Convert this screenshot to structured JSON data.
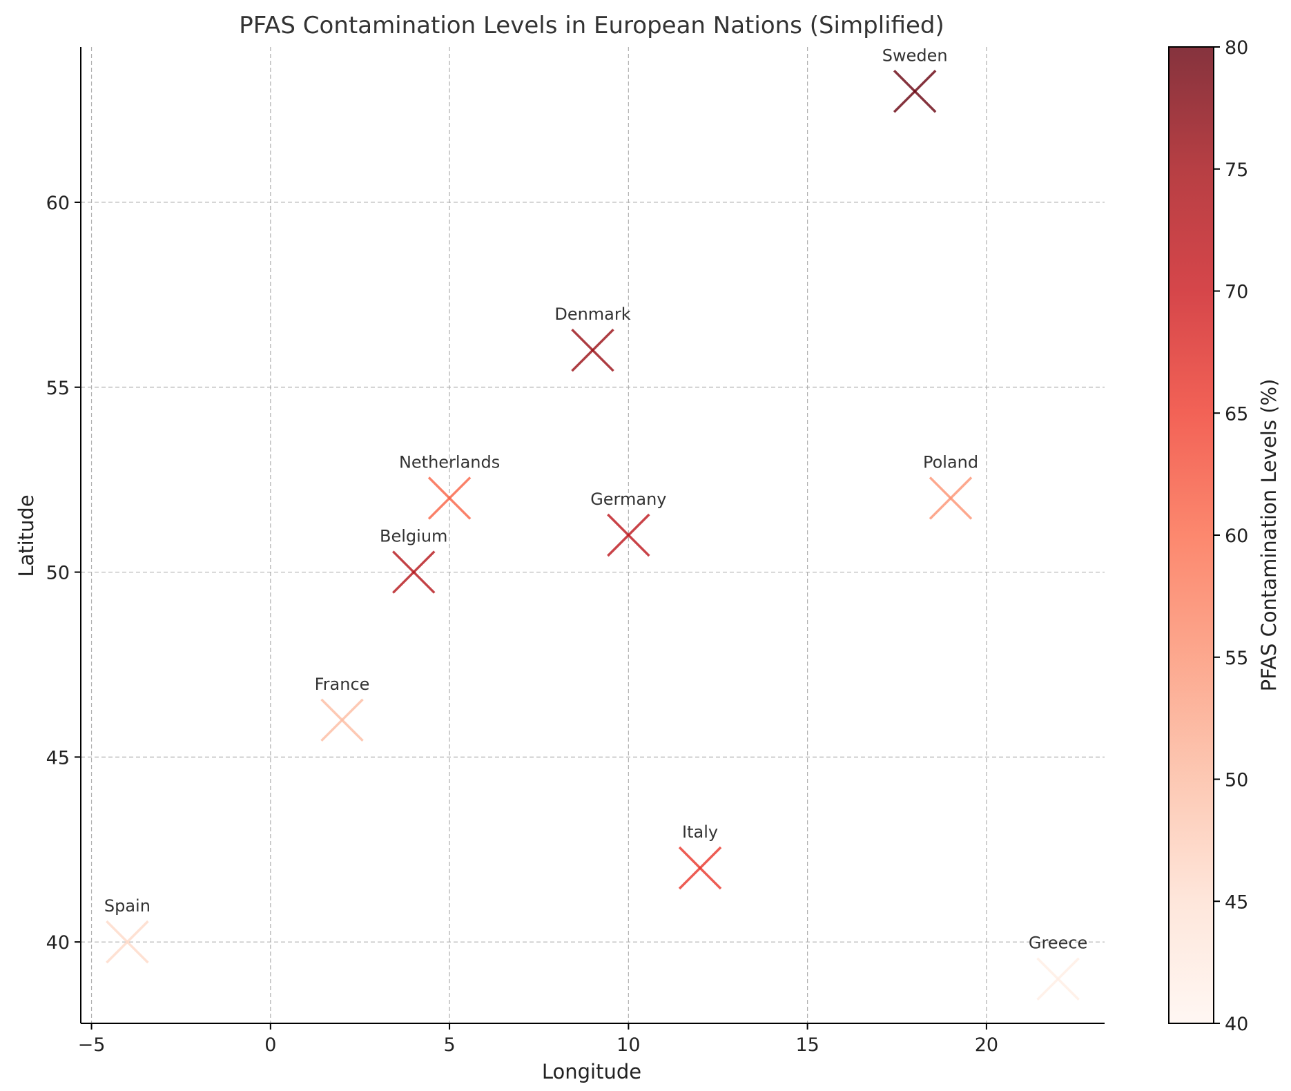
{
  "chart_data": {
    "type": "scatter",
    "title": "PFAS Contamination Levels in European Nations (Simplified)",
    "xlabel": "Longitude",
    "ylabel": "Latitude",
    "xlim": [
      -5.3,
      23.3
    ],
    "ylim": [
      37.8,
      64.2
    ],
    "xticks": [
      -5,
      0,
      5,
      10,
      15,
      20
    ],
    "yticks": [
      40,
      45,
      50,
      55,
      60
    ],
    "xtick_labels": [
      "−5",
      "0",
      "5",
      "10",
      "15",
      "20"
    ],
    "ytick_labels": [
      "40",
      "45",
      "50",
      "55",
      "60"
    ],
    "grid": true,
    "marker": "x",
    "colormap": "Reds",
    "color_range": [
      40,
      80
    ],
    "colorbar_label": "PFAS Contamination Levels (%)",
    "colorbar_ticks": [
      40,
      45,
      50,
      55,
      60,
      65,
      70,
      75,
      80
    ],
    "colorbar_tick_labels": [
      "40",
      "45",
      "50",
      "55",
      "60",
      "65",
      "70",
      "75",
      "80"
    ],
    "points": [
      {
        "label": "Germany",
        "x": 10,
        "y": 51,
        "value": 72
      },
      {
        "label": "France",
        "x": 2,
        "y": 46,
        "value": 50
      },
      {
        "label": "Italy",
        "x": 12,
        "y": 42,
        "value": 66
      },
      {
        "label": "Spain",
        "x": -4,
        "y": 40,
        "value": 46
      },
      {
        "label": "Netherlands",
        "x": 5,
        "y": 52,
        "value": 61
      },
      {
        "label": "Belgium",
        "x": 4,
        "y": 50,
        "value": 73
      },
      {
        "label": "Sweden",
        "x": 18,
        "y": 63,
        "value": 80
      },
      {
        "label": "Denmark",
        "x": 9,
        "y": 56,
        "value": 76
      },
      {
        "label": "Poland",
        "x": 19,
        "y": 52,
        "value": 55
      },
      {
        "label": "Greece",
        "x": 22,
        "y": 39,
        "value": 42
      }
    ]
  }
}
